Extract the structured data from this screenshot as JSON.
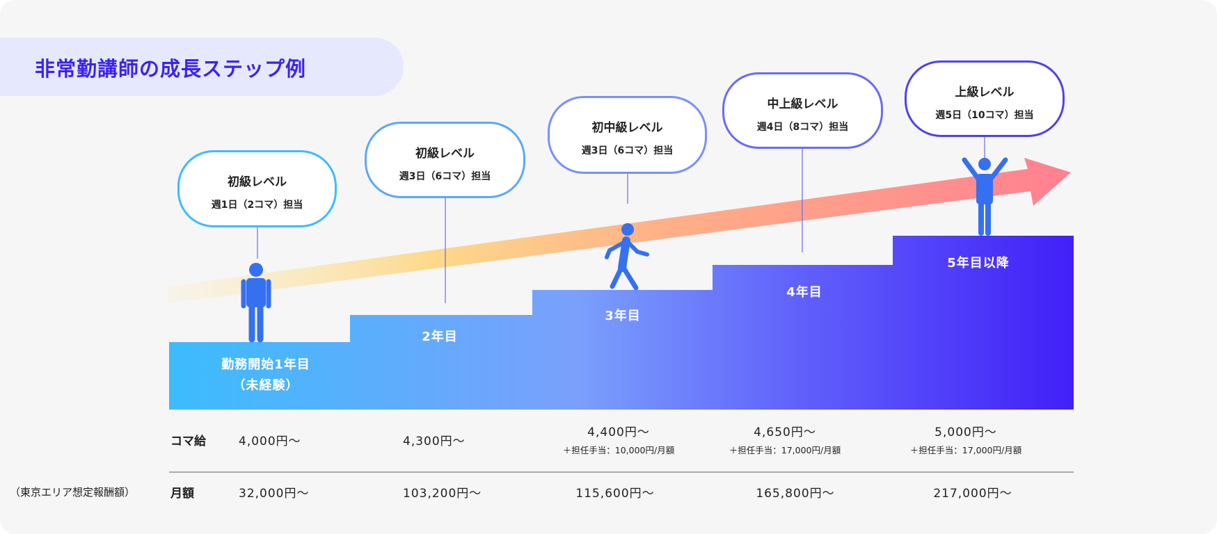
{
  "title": "非常勤講師の成長ステップ例",
  "colors": {
    "accent": "#3a24f0",
    "step_start": "#3cbcfd",
    "step_mid": "#7aa0fc",
    "step_end": "#4120f8",
    "figure": "#3570f0"
  },
  "steps": [
    {
      "year_line1": "勤務開始1年目",
      "year_line2": "（未経験）",
      "level": "初級レベル",
      "days": "週1日（2コマ）担当"
    },
    {
      "year_line1": "2年目",
      "level": "初級レベル",
      "days": "週3日（6コマ）担当"
    },
    {
      "year_line1": "3年目",
      "level": "初中級レベル",
      "days": "週3日（6コマ）担当"
    },
    {
      "year_line1": "4年目",
      "level": "中上級レベル",
      "days": "週4日（8コマ）担当"
    },
    {
      "year_line1": "5年目以降",
      "level": "上級レベル",
      "days": "週5日（10コマ）担当"
    }
  ],
  "table": {
    "koma_label": "コマ給",
    "monthly_label": "月額",
    "note": "（東京エリア想定報酬額）",
    "koma": [
      "4,000円〜",
      "4,300円〜",
      "4,400円〜",
      "4,650円〜",
      "5,000円〜"
    ],
    "allowance": [
      "",
      "",
      "＋担任手当：10,000円/月額",
      "＋担任手当：17,000円/月額",
      "＋担任手当：17,000円/月額"
    ],
    "monthly": [
      "32,000円〜",
      "103,200円〜",
      "115,600円〜",
      "165,800円〜",
      "217,000円〜"
    ]
  },
  "icons": {
    "figures": [
      "standing-person-icon",
      "walking-person-icon",
      "cheering-person-icon"
    ],
    "arrow": "growth-arrow-icon"
  }
}
